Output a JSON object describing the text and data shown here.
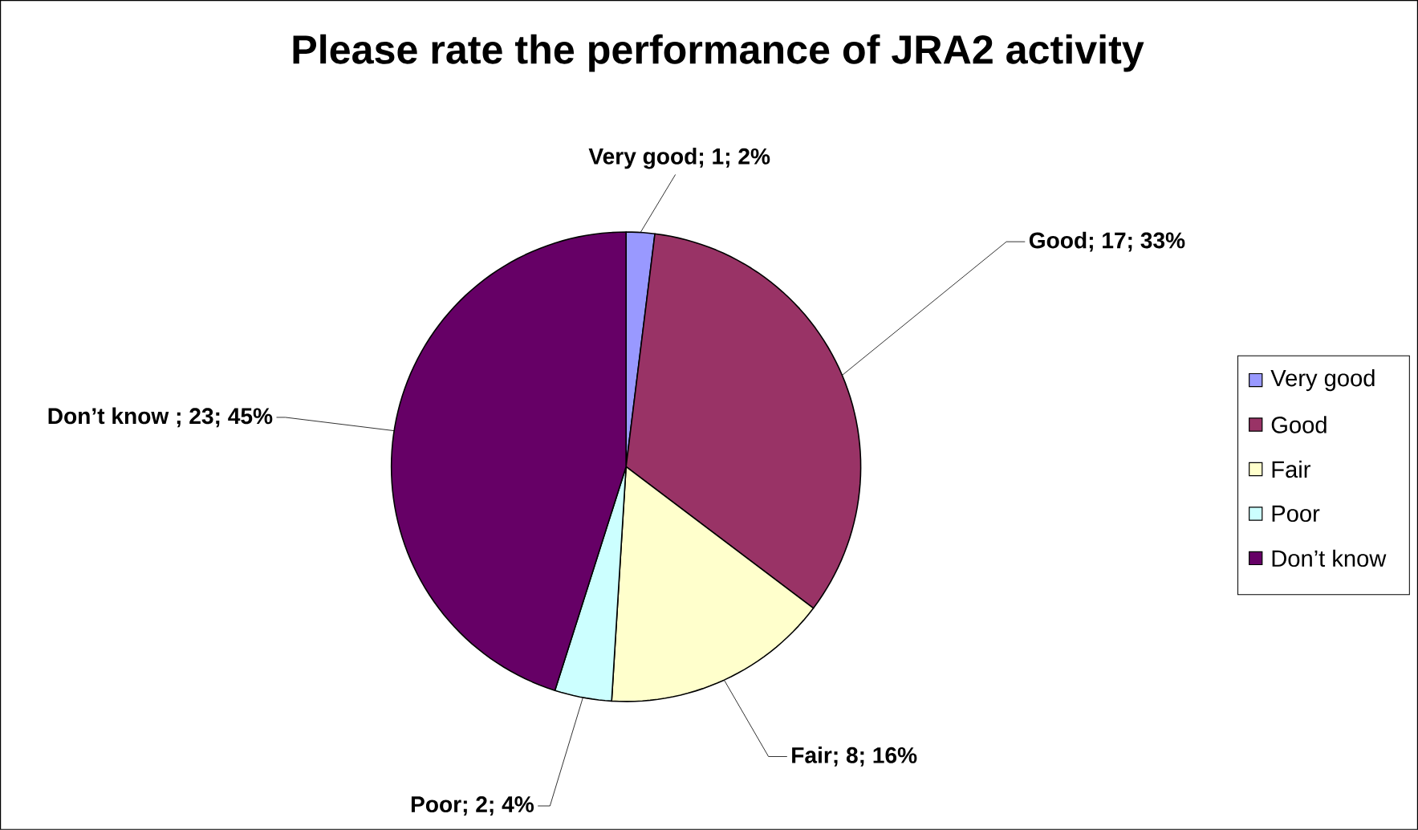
{
  "chart_data": {
    "type": "pie",
    "title": "Please rate the performance of JRA2 activity",
    "categories": [
      "Very good",
      "Good",
      "Fair",
      "Poor",
      "Don’t know"
    ],
    "values": [
      1,
      17,
      8,
      2,
      23
    ],
    "colors": [
      "#9999ff",
      "#993366",
      "#ffffcc",
      "#ccffff",
      "#660066"
    ],
    "value_labels": [
      "Very good; 1; 2%",
      "Good; 17; 33%",
      "Fair; 8; 16%",
      "Poor; 2; 4%",
      "Don’t know ; 23; 45%"
    ],
    "legend": "right"
  }
}
